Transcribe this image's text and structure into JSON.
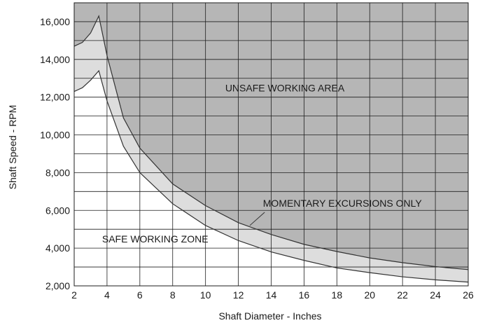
{
  "chart_data": {
    "type": "area",
    "title": "",
    "xlabel": "Shaft Diameter - Inches",
    "ylabel": "Shaft Speed - RPM",
    "xlim": [
      2,
      26
    ],
    "ylim": [
      2000,
      17000
    ],
    "x_ticks": [
      2,
      4,
      6,
      8,
      10,
      12,
      14,
      16,
      18,
      20,
      22,
      24,
      26
    ],
    "x_tick_labels": [
      "2",
      "4",
      "6",
      "8",
      "10",
      "12",
      "14",
      "16",
      "18",
      "20",
      "22",
      "24",
      "26"
    ],
    "y_ticks": [
      2000,
      4000,
      6000,
      8000,
      10000,
      12000,
      14000,
      16000
    ],
    "y_tick_labels": [
      "2,000",
      "4,000",
      "6,000",
      "8,000",
      "10,000",
      "12,000",
      "14,000",
      "16,000"
    ],
    "grid": true,
    "series": [
      {
        "name": "",
        "x": [
          2,
          2.5,
          3,
          3.5,
          4,
          5,
          6,
          8,
          10,
          12,
          14,
          16,
          18,
          20,
          22,
          24,
          26
        ],
        "values": [
          14700,
          14900,
          15400,
          16300,
          14200,
          10900,
          9300,
          7400,
          6250,
          5350,
          4720,
          4200,
          3820,
          3480,
          3230,
          3020,
          2860
        ]
      },
      {
        "name": "",
        "x": [
          2,
          2.5,
          3,
          3.5,
          4,
          5,
          6,
          8,
          10,
          12,
          14,
          16,
          18,
          20,
          22,
          24,
          26
        ],
        "values": [
          12300,
          12500,
          12900,
          13400,
          11800,
          9400,
          8000,
          6350,
          5200,
          4400,
          3800,
          3350,
          2950,
          2700,
          2480,
          2320,
          2200
        ]
      }
    ],
    "annotations": [
      {
        "text": "UNSAFE WORKING AREA",
        "x": 11.2,
        "y": 12300
      },
      {
        "text": "MOMENTARY EXCURSIONS ONLY",
        "x": 13.5,
        "y": 6200
      },
      {
        "text": "SAFE WORKING ZONE",
        "x": 3.7,
        "y": 4300
      }
    ],
    "colors": {
      "unsafe": "#b6b6b6",
      "momentary": "#dddddd",
      "safe": "#ffffff",
      "grid": "#1e1e1e",
      "curve": "#333333"
    }
  }
}
